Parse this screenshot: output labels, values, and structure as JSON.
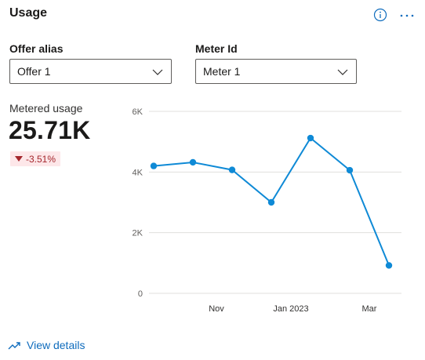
{
  "header": {
    "title": "Usage",
    "info_icon": "info-icon",
    "more_icon": "more-icon"
  },
  "filters": {
    "offer": {
      "label": "Offer alias",
      "value": "Offer 1"
    },
    "meter": {
      "label": "Meter Id",
      "value": "Meter 1"
    }
  },
  "kpi": {
    "label": "Metered usage",
    "value": "25.71K",
    "delta": "-3.51%",
    "delta_direction": "down"
  },
  "colors": {
    "series": "#0f8ad6",
    "negative": "#a4262c",
    "negative_bg": "#fde7e9",
    "link": "#0f6cbd",
    "grid": "#e1dfdd"
  },
  "chart_data": {
    "type": "line",
    "y_ticks": [
      {
        "value": 0,
        "label": "0"
      },
      {
        "value": 2000,
        "label": "2K"
      },
      {
        "value": 4000,
        "label": "4K"
      },
      {
        "value": 6000,
        "label": "6K"
      }
    ],
    "x_ticks": [
      {
        "x": 1.6,
        "label": "Nov"
      },
      {
        "x": 3.5,
        "label": "Jan 2023"
      },
      {
        "x": 5.5,
        "label": "Mar"
      }
    ],
    "ylim": [
      0,
      6000
    ],
    "xlim": [
      0,
      6.2
    ],
    "grid": true,
    "series": [
      {
        "values": [
          {
            "x": 0,
            "y": 4200
          },
          {
            "x": 1,
            "y": 4320
          },
          {
            "x": 2,
            "y": 4070
          },
          {
            "x": 3,
            "y": 3000
          },
          {
            "x": 4,
            "y": 5120
          },
          {
            "x": 5,
            "y": 4060
          },
          {
            "x": 6,
            "y": 920
          }
        ]
      }
    ]
  },
  "footer": {
    "link_label": "View details",
    "link_icon": "trend-icon"
  }
}
